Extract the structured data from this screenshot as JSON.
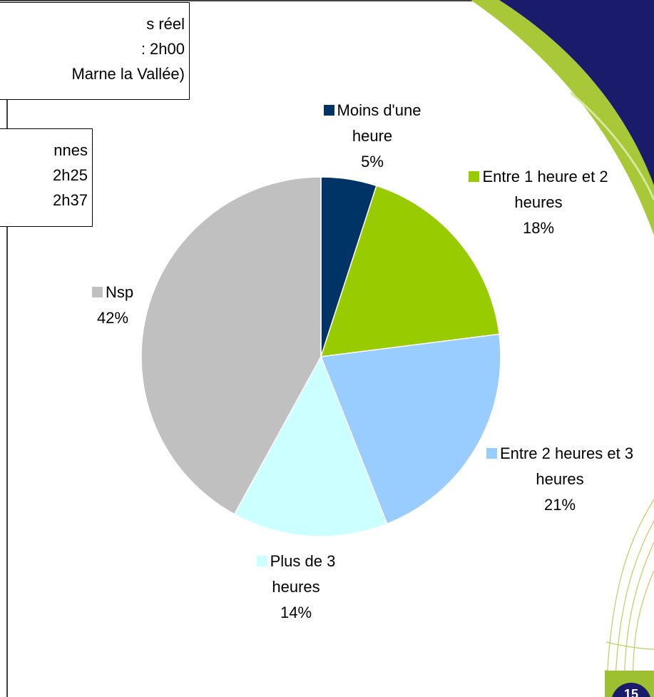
{
  "notes": [
    {
      "lines": [
        "s réel",
        ": 2h00",
        "Marne la Vallée)"
      ]
    },
    {
      "lines": [
        "nnes",
        "2h25",
        "2h37"
      ]
    }
  ],
  "page_number": "15",
  "chart_data": {
    "type": "pie",
    "categories": [
      "Moins d'une heure",
      "Entre 1 heure et 2 heures",
      "Entre 2 heures et 3 heures",
      "Plus de 3 heures",
      "Nsp"
    ],
    "values": [
      5,
      18,
      21,
      14,
      42
    ],
    "value_labels": [
      "5%",
      "18%",
      "21%",
      "14%",
      "42%"
    ],
    "colors": [
      "#003366",
      "#99cc00",
      "#99ccff",
      "#ccffff",
      "#c0c0c0"
    ]
  }
}
